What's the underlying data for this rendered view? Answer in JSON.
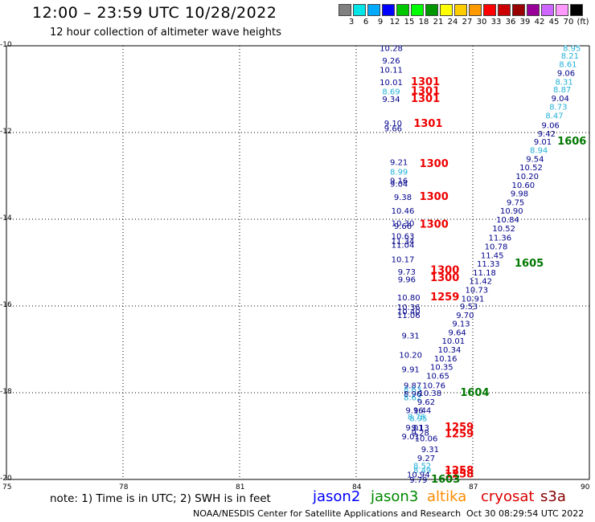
{
  "title": "12:00 – 23:59 UTC 10/28/2022",
  "subtitle": "12 hour collection of altimeter wave heights",
  "legend": {
    "colors": [
      "#808080",
      "#00e5e5",
      "#00aaff",
      "#0000ff",
      "#00c800",
      "#00ff00",
      "#009600",
      "#ffff00",
      "#ffcc00",
      "#ff9900",
      "#ff0000",
      "#cc0000",
      "#990000",
      "#990099",
      "#cc66ff",
      "#ff99ff",
      "#000000"
    ],
    "labels": [
      "3",
      "6",
      "9",
      "12",
      "15",
      "18",
      "21",
      "24",
      "27",
      "30",
      "33",
      "36",
      "39",
      "42",
      "45",
      "70",
      "(ft)"
    ]
  },
  "note": "note: 1) Time is in UTC; 2) SWH is in feet",
  "satellites": [
    {
      "name": "jason2",
      "color": "#0000ff"
    },
    {
      "name": "jason3",
      "color": "#008800"
    },
    {
      "name": "altika",
      "color": "#ff8c00"
    },
    {
      "name": "cryosat",
      "color": "#dd0000"
    },
    {
      "name": "s3a",
      "color": "#880000"
    }
  ],
  "credit": "NOAA/NESDIS Center for Satellite Applications and Research",
  "timestamp": "Oct 30 08:29:54 UTC 2022",
  "chart_data": {
    "type": "scatter",
    "xlim": [
      75,
      90
    ],
    "ylim": [
      -20,
      -10
    ],
    "xticks": [
      "75",
      "78",
      "81",
      "84",
      "87",
      "90"
    ],
    "yticks": [
      "-10",
      "-12",
      "-14",
      "-16",
      "-18",
      "-20"
    ],
    "grid": true,
    "colors": {
      "dark": "#00008b",
      "light": "#22b0d8",
      "red": "#ee0000",
      "green": "#007700"
    },
    "points": [
      {
        "x": 84.9,
        "y": -10.05,
        "t": "10.28",
        "c": "dark"
      },
      {
        "x": 84.9,
        "y": -10.33,
        "t": "9.26",
        "c": "dark"
      },
      {
        "x": 84.9,
        "y": -10.55,
        "t": "10.11",
        "c": "dark"
      },
      {
        "x": 84.9,
        "y": -10.83,
        "t": "10.01",
        "c": "dark"
      },
      {
        "x": 84.9,
        "y": -11.05,
        "t": "8.69",
        "c": "light"
      },
      {
        "x": 84.9,
        "y": -11.22,
        "t": "9.34",
        "c": "dark"
      },
      {
        "x": 85.78,
        "y": -10.83,
        "t": "1301",
        "c": "red"
      },
      {
        "x": 85.78,
        "y": -11.05,
        "t": "1301",
        "c": "red"
      },
      {
        "x": 85.78,
        "y": -11.22,
        "t": "1301",
        "c": "red"
      },
      {
        "x": 84.95,
        "y": -11.78,
        "t": "9.10",
        "c": "dark"
      },
      {
        "x": 84.95,
        "y": -11.9,
        "t": "9.66",
        "c": "dark"
      },
      {
        "x": 85.85,
        "y": -11.8,
        "t": "1301",
        "c": "red"
      },
      {
        "x": 85.1,
        "y": -12.68,
        "t": "9.21",
        "c": "dark"
      },
      {
        "x": 85.1,
        "y": -12.9,
        "t": "8.99",
        "c": "light"
      },
      {
        "x": 85.1,
        "y": -13.1,
        "t": "9.16",
        "c": "dark"
      },
      {
        "x": 85.1,
        "y": -13.18,
        "t": "9.04",
        "c": "dark"
      },
      {
        "x": 86.0,
        "y": -12.72,
        "t": "1300",
        "c": "red"
      },
      {
        "x": 85.2,
        "y": -13.48,
        "t": "9.38",
        "c": "dark"
      },
      {
        "x": 85.2,
        "y": -13.8,
        "t": "10.46",
        "c": "dark"
      },
      {
        "x": 86.0,
        "y": -13.48,
        "t": "1300",
        "c": "red"
      },
      {
        "x": 85.2,
        "y": -14.08,
        "t": "10.30",
        "c": "dark"
      },
      {
        "x": 85.2,
        "y": -14.15,
        "t": "9.66",
        "c": "dark"
      },
      {
        "x": 85.2,
        "y": -14.38,
        "t": "10.63",
        "c": "dark"
      },
      {
        "x": 85.2,
        "y": -14.5,
        "t": "11.34",
        "c": "dark"
      },
      {
        "x": 85.2,
        "y": -14.58,
        "t": "11.04",
        "c": "dark"
      },
      {
        "x": 86.0,
        "y": -14.12,
        "t": "1300",
        "c": "red"
      },
      {
        "x": 85.2,
        "y": -14.92,
        "t": "10.17",
        "c": "dark"
      },
      {
        "x": 85.3,
        "y": -15.2,
        "t": "9.73",
        "c": "dark"
      },
      {
        "x": 85.3,
        "y": -15.38,
        "t": "9.96",
        "c": "dark"
      },
      {
        "x": 86.28,
        "y": -15.18,
        "t": "1300",
        "c": "red"
      },
      {
        "x": 86.28,
        "y": -15.35,
        "t": "1300",
        "c": "red"
      },
      {
        "x": 85.35,
        "y": -15.8,
        "t": "10.80",
        "c": "dark"
      },
      {
        "x": 85.35,
        "y": -16.02,
        "t": "10.36",
        "c": "dark"
      },
      {
        "x": 85.35,
        "y": -16.12,
        "t": "10.40",
        "c": "dark"
      },
      {
        "x": 85.35,
        "y": -16.2,
        "t": "11.06",
        "c": "dark"
      },
      {
        "x": 86.28,
        "y": -15.8,
        "t": "1259",
        "c": "red"
      },
      {
        "x": 85.4,
        "y": -16.68,
        "t": "9.31",
        "c": "dark"
      },
      {
        "x": 85.4,
        "y": -17.12,
        "t": "10.20",
        "c": "dark"
      },
      {
        "x": 85.4,
        "y": -17.45,
        "t": "9.91",
        "c": "dark"
      },
      {
        "x": 85.45,
        "y": -17.82,
        "t": "9.87",
        "c": "dark"
      },
      {
        "x": 85.45,
        "y": -17.92,
        "t": "8.63",
        "c": "light"
      },
      {
        "x": 85.45,
        "y": -18.02,
        "t": "8.96",
        "c": "dark"
      },
      {
        "x": 85.45,
        "y": -18.1,
        "t": "8.62",
        "c": "light"
      },
      {
        "x": 85.5,
        "y": -18.4,
        "t": "9.16",
        "c": "dark"
      },
      {
        "x": 85.55,
        "y": -18.55,
        "t": "8.76",
        "c": "light"
      },
      {
        "x": 85.65,
        "y": -18.8,
        "t": "9.13",
        "c": "dark"
      },
      {
        "x": 85.65,
        "y": -18.92,
        "t": "9.28",
        "c": "dark"
      },
      {
        "x": 85.8,
        "y": -19.05,
        "t": "10.06",
        "c": "dark"
      },
      {
        "x": 86.65,
        "y": -18.8,
        "t": "1259",
        "c": "red"
      },
      {
        "x": 86.65,
        "y": -18.95,
        "t": "1259",
        "c": "red"
      },
      {
        "x": 85.9,
        "y": -19.3,
        "t": "9.31",
        "c": "dark"
      },
      {
        "x": 85.8,
        "y": -19.5,
        "t": "9.27",
        "c": "dark"
      },
      {
        "x": 85.7,
        "y": -19.68,
        "t": "8.52",
        "c": "light"
      },
      {
        "x": 85.7,
        "y": -19.78,
        "t": "8.49",
        "c": "light"
      },
      {
        "x": 85.6,
        "y": -19.88,
        "t": "10.94",
        "c": "dark"
      },
      {
        "x": 85.6,
        "y": -20.0,
        "t": "9.79",
        "c": "dark"
      },
      {
        "x": 86.65,
        "y": -19.8,
        "t": "1258",
        "c": "red"
      },
      {
        "x": 86.65,
        "y": -19.88,
        "t": "1258",
        "c": "red"
      },
      {
        "x": 86.3,
        "y": -20.0,
        "t": "1603",
        "c": "green"
      },
      {
        "x": 89.55,
        "y": -10.05,
        "t": "8.95",
        "c": "light"
      },
      {
        "x": 89.5,
        "y": -10.22,
        "t": "8.21",
        "c": "light"
      },
      {
        "x": 89.45,
        "y": -10.42,
        "t": "8.61",
        "c": "light"
      },
      {
        "x": 89.4,
        "y": -10.62,
        "t": "9.06",
        "c": "dark"
      },
      {
        "x": 89.35,
        "y": -10.82,
        "t": "8.31",
        "c": "light"
      },
      {
        "x": 89.3,
        "y": -11.0,
        "t": "8.87",
        "c": "light"
      },
      {
        "x": 89.25,
        "y": -11.2,
        "t": "9.04",
        "c": "dark"
      },
      {
        "x": 89.2,
        "y": -11.4,
        "t": "8.73",
        "c": "light"
      },
      {
        "x": 89.1,
        "y": -11.6,
        "t": "8.47",
        "c": "light"
      },
      {
        "x": 89.0,
        "y": -11.82,
        "t": "9.06",
        "c": "dark"
      },
      {
        "x": 88.9,
        "y": -12.02,
        "t": "9.42",
        "c": "dark"
      },
      {
        "x": 88.8,
        "y": -12.2,
        "t": "9.01",
        "c": "dark"
      },
      {
        "x": 88.7,
        "y": -12.4,
        "t": "8.94",
        "c": "light"
      },
      {
        "x": 89.55,
        "y": -12.2,
        "t": "1606",
        "c": "green"
      },
      {
        "x": 88.6,
        "y": -12.6,
        "t": "9.54",
        "c": "dark"
      },
      {
        "x": 88.5,
        "y": -12.8,
        "t": "10.52",
        "c": "dark"
      },
      {
        "x": 88.4,
        "y": -13.0,
        "t": "10.20",
        "c": "dark"
      },
      {
        "x": 88.3,
        "y": -13.2,
        "t": "10.60",
        "c": "dark"
      },
      {
        "x": 88.2,
        "y": -13.4,
        "t": "9.98",
        "c": "dark"
      },
      {
        "x": 88.1,
        "y": -13.6,
        "t": "9.75",
        "c": "dark"
      },
      {
        "x": 88.0,
        "y": -13.8,
        "t": "10.90",
        "c": "dark"
      },
      {
        "x": 87.9,
        "y": -14.0,
        "t": "10.84",
        "c": "dark"
      },
      {
        "x": 87.8,
        "y": -14.2,
        "t": "10.52",
        "c": "dark"
      },
      {
        "x": 87.7,
        "y": -14.42,
        "t": "11.36",
        "c": "dark"
      },
      {
        "x": 87.6,
        "y": -14.62,
        "t": "10.78",
        "c": "dark"
      },
      {
        "x": 87.5,
        "y": -14.82,
        "t": "11.45",
        "c": "dark"
      },
      {
        "x": 87.4,
        "y": -15.02,
        "t": "11.33",
        "c": "dark"
      },
      {
        "x": 88.45,
        "y": -15.02,
        "t": "1605",
        "c": "green"
      },
      {
        "x": 87.3,
        "y": -15.22,
        "t": "11.18",
        "c": "dark"
      },
      {
        "x": 87.2,
        "y": -15.42,
        "t": "11.42",
        "c": "dark"
      },
      {
        "x": 87.1,
        "y": -15.62,
        "t": "10.73",
        "c": "dark"
      },
      {
        "x": 87.0,
        "y": -15.82,
        "t": "10.91",
        "c": "dark"
      },
      {
        "x": 86.9,
        "y": -16.0,
        "t": "9.53",
        "c": "dark"
      },
      {
        "x": 86.8,
        "y": -16.2,
        "t": "9.70",
        "c": "dark"
      },
      {
        "x": 86.7,
        "y": -16.4,
        "t": "9.13",
        "c": "dark"
      },
      {
        "x": 86.6,
        "y": -16.6,
        "t": "9.64",
        "c": "dark"
      },
      {
        "x": 86.5,
        "y": -16.8,
        "t": "10.01",
        "c": "dark"
      },
      {
        "x": 86.4,
        "y": -17.0,
        "t": "10.34",
        "c": "dark"
      },
      {
        "x": 86.3,
        "y": -17.2,
        "t": "10.16",
        "c": "dark"
      },
      {
        "x": 86.2,
        "y": -17.4,
        "t": "10.35",
        "c": "dark"
      },
      {
        "x": 86.1,
        "y": -17.6,
        "t": "10.65",
        "c": "dark"
      },
      {
        "x": 86.0,
        "y": -17.82,
        "t": "10.76",
        "c": "dark"
      },
      {
        "x": 85.9,
        "y": -18.0,
        "t": "10.38",
        "c": "dark"
      },
      {
        "x": 87.05,
        "y": -18.0,
        "t": "1604",
        "c": "green"
      },
      {
        "x": 85.8,
        "y": -18.2,
        "t": "9.62",
        "c": "dark"
      },
      {
        "x": 85.7,
        "y": -18.4,
        "t": "9.44",
        "c": "dark"
      },
      {
        "x": 85.6,
        "y": -18.58,
        "t": "8.95",
        "c": "light"
      },
      {
        "x": 85.5,
        "y": -18.8,
        "t": "9.01",
        "c": "dark"
      },
      {
        "x": 85.4,
        "y": -19.0,
        "t": "9.01",
        "c": "dark"
      }
    ]
  }
}
